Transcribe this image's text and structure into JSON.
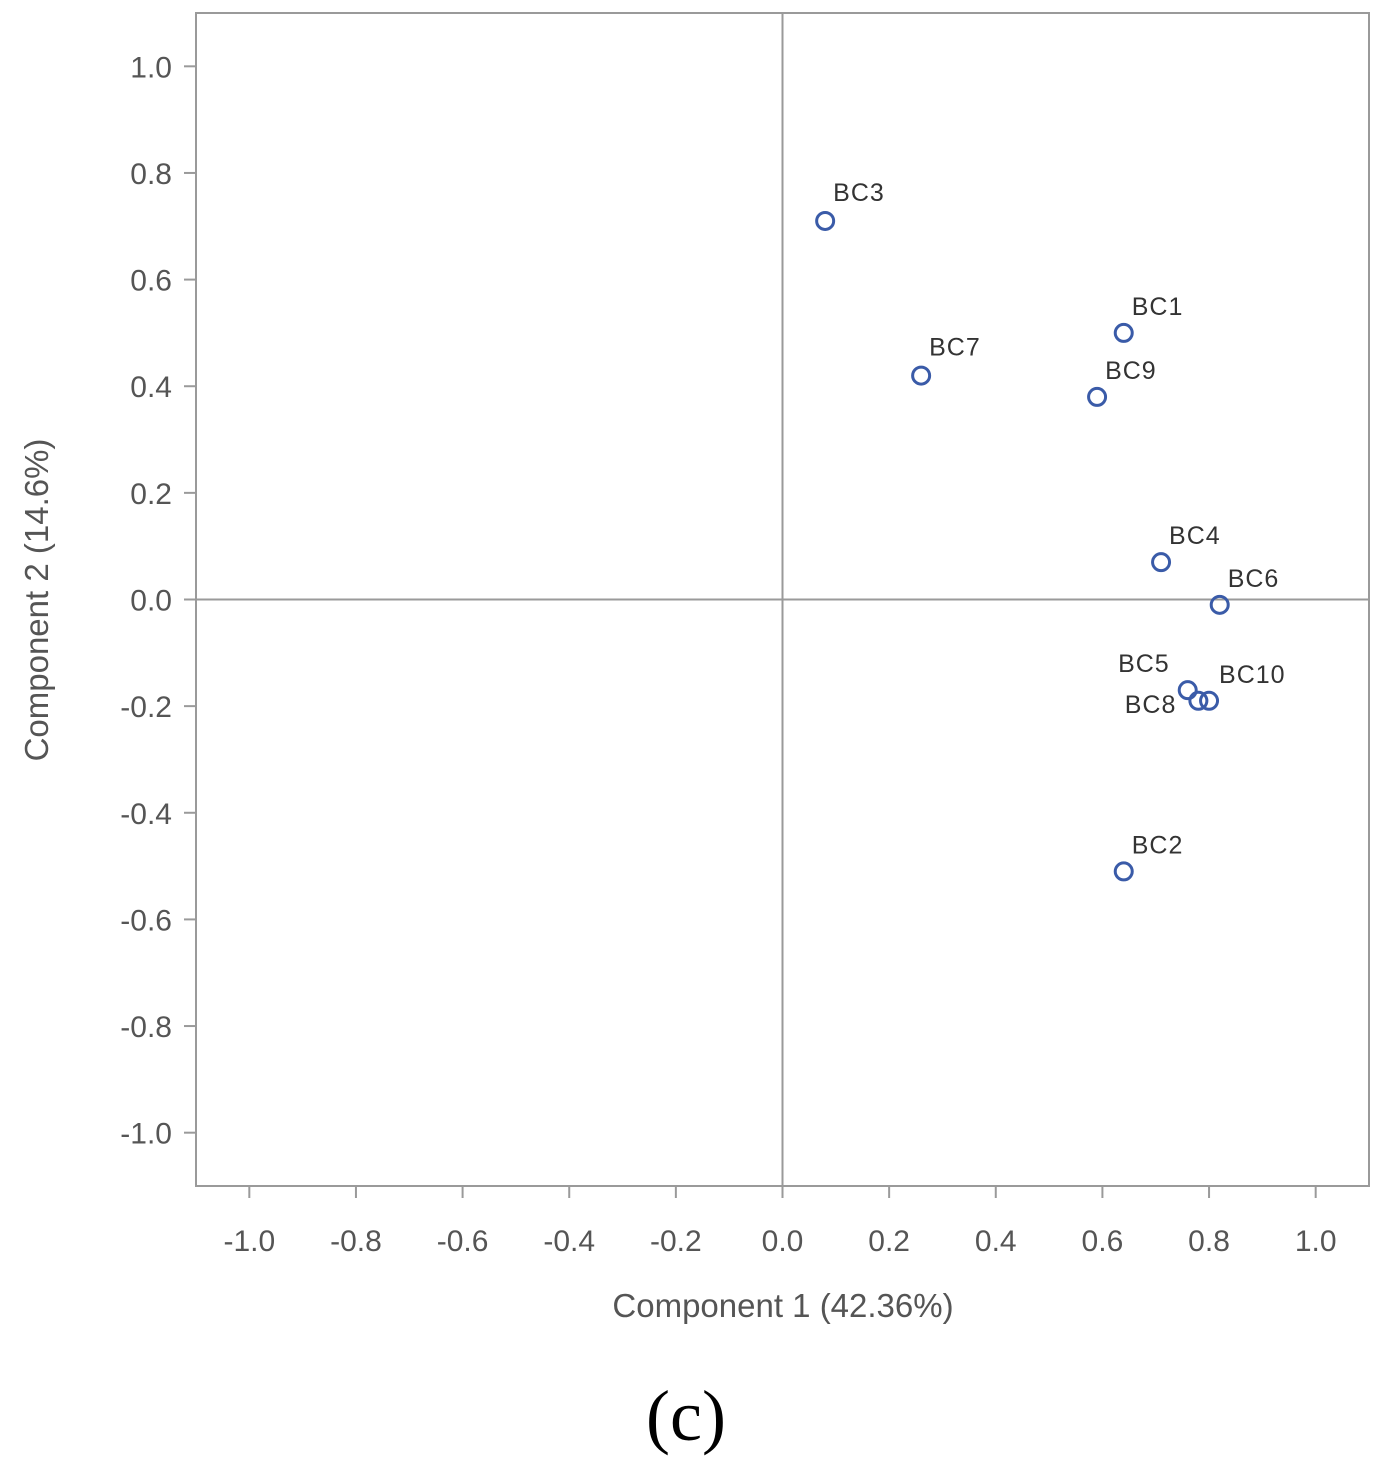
{
  "chart_data": {
    "type": "scatter",
    "title": "",
    "xlabel": "Component 1 (42.36%)",
    "ylabel": "Component 2 (14.6%)",
    "xlim": [
      -1.1,
      1.1
    ],
    "ylim": [
      -1.1,
      1.1
    ],
    "x_ticks": [
      -1.0,
      -0.8,
      -0.6,
      -0.4,
      -0.2,
      0.0,
      0.2,
      0.4,
      0.6,
      0.8,
      1.0
    ],
    "y_ticks": [
      1.0,
      0.8,
      0.6,
      0.4,
      0.2,
      0.0,
      -0.2,
      -0.4,
      -0.6,
      -0.8,
      -1.0
    ],
    "x_tick_labels": [
      "-1.0",
      "-0.8",
      "-0.6",
      "-0.4",
      "-0.2",
      "0.0",
      "0.2",
      "0.4",
      "0.6",
      "0.8",
      "1.0"
    ],
    "y_tick_labels": [
      "1.0",
      "0.8",
      "0.6",
      "0.4",
      "0.2",
      "0.0",
      "-0.2",
      "-0.4",
      "-0.6",
      "-0.8",
      "-1.0"
    ],
    "reference_lines": {
      "x": 0.0,
      "y": 0.0
    },
    "grid": false,
    "marker_color": "#3a5ba8",
    "points": [
      {
        "label": "BC1",
        "x": 0.64,
        "y": 0.5
      },
      {
        "label": "BC2",
        "x": 0.64,
        "y": -0.51
      },
      {
        "label": "BC3",
        "x": 0.08,
        "y": 0.71
      },
      {
        "label": "BC4",
        "x": 0.71,
        "y": 0.07
      },
      {
        "label": "BC5",
        "x": 0.76,
        "y": -0.17
      },
      {
        "label": "BC6",
        "x": 0.82,
        "y": -0.01
      },
      {
        "label": "BC7",
        "x": 0.26,
        "y": 0.42
      },
      {
        "label": "BC8",
        "x": 0.78,
        "y": -0.19
      },
      {
        "label": "BC9",
        "x": 0.59,
        "y": 0.38
      },
      {
        "label": "BC10",
        "x": 0.8,
        "y": -0.19
      }
    ]
  },
  "panel_label": "(c)"
}
